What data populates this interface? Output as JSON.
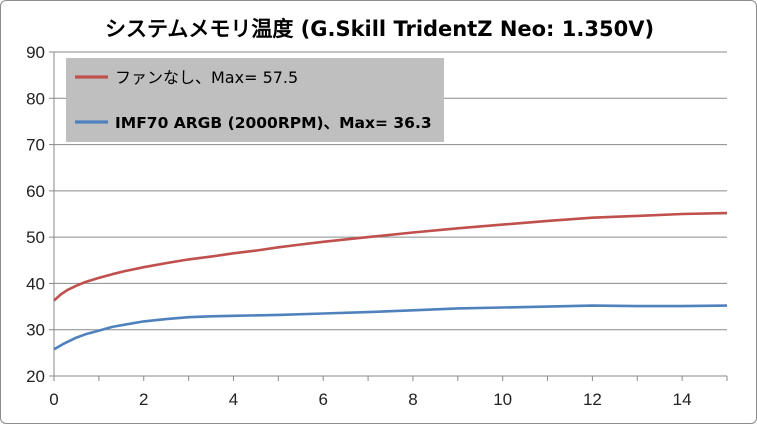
{
  "chart_data": {
    "type": "line",
    "title": "システムメモリ温度 (G.Skill TridentZ Neo: 1.350V)",
    "xlabel": "",
    "ylabel": "",
    "xlim": [
      0,
      15
    ],
    "ylim": [
      20,
      90
    ],
    "x_ticks": [
      0,
      2,
      4,
      6,
      8,
      10,
      12,
      14
    ],
    "y_ticks": [
      20,
      30,
      40,
      50,
      60,
      70,
      80,
      90
    ],
    "grid": "horizontal",
    "legend_position": "top-left",
    "series": [
      {
        "name": "ファンなし、Max= 57.5",
        "color": "#c0504d",
        "x": [
          0,
          0.15,
          0.3,
          0.5,
          0.7,
          1.0,
          1.3,
          1.6,
          2.0,
          2.5,
          3.0,
          3.5,
          4.0,
          4.5,
          5.0,
          5.5,
          6.0,
          7.0,
          8.0,
          9.0,
          10.0,
          11.0,
          12.0,
          13.0,
          14.0,
          15.0
        ],
        "y": [
          36.3,
          37.6,
          38.6,
          39.5,
          40.3,
          41.2,
          42.0,
          42.7,
          43.5,
          44.4,
          45.2,
          45.8,
          46.5,
          47.1,
          47.8,
          48.4,
          49.0,
          50.0,
          51.0,
          51.9,
          52.7,
          53.5,
          54.2,
          54.6,
          55.0,
          55.2
        ]
      },
      {
        "name": "IMF70 ARGB (2000RPM)、Max= 36.3",
        "color": "#4f81bd",
        "x": [
          0,
          0.1,
          0.2,
          0.35,
          0.5,
          0.7,
          1.0,
          1.3,
          1.7,
          2.0,
          2.5,
          3.0,
          3.5,
          4.0,
          5.0,
          6.0,
          7.0,
          8.0,
          9.0,
          10.0,
          11.0,
          12.0,
          13.0,
          14.0,
          15.0
        ],
        "y": [
          25.8,
          26.3,
          26.9,
          27.6,
          28.3,
          29.0,
          29.8,
          30.6,
          31.3,
          31.8,
          32.3,
          32.7,
          32.9,
          33.0,
          33.2,
          33.5,
          33.8,
          34.2,
          34.6,
          34.8,
          35.0,
          35.2,
          35.1,
          35.1,
          35.2
        ]
      }
    ]
  }
}
